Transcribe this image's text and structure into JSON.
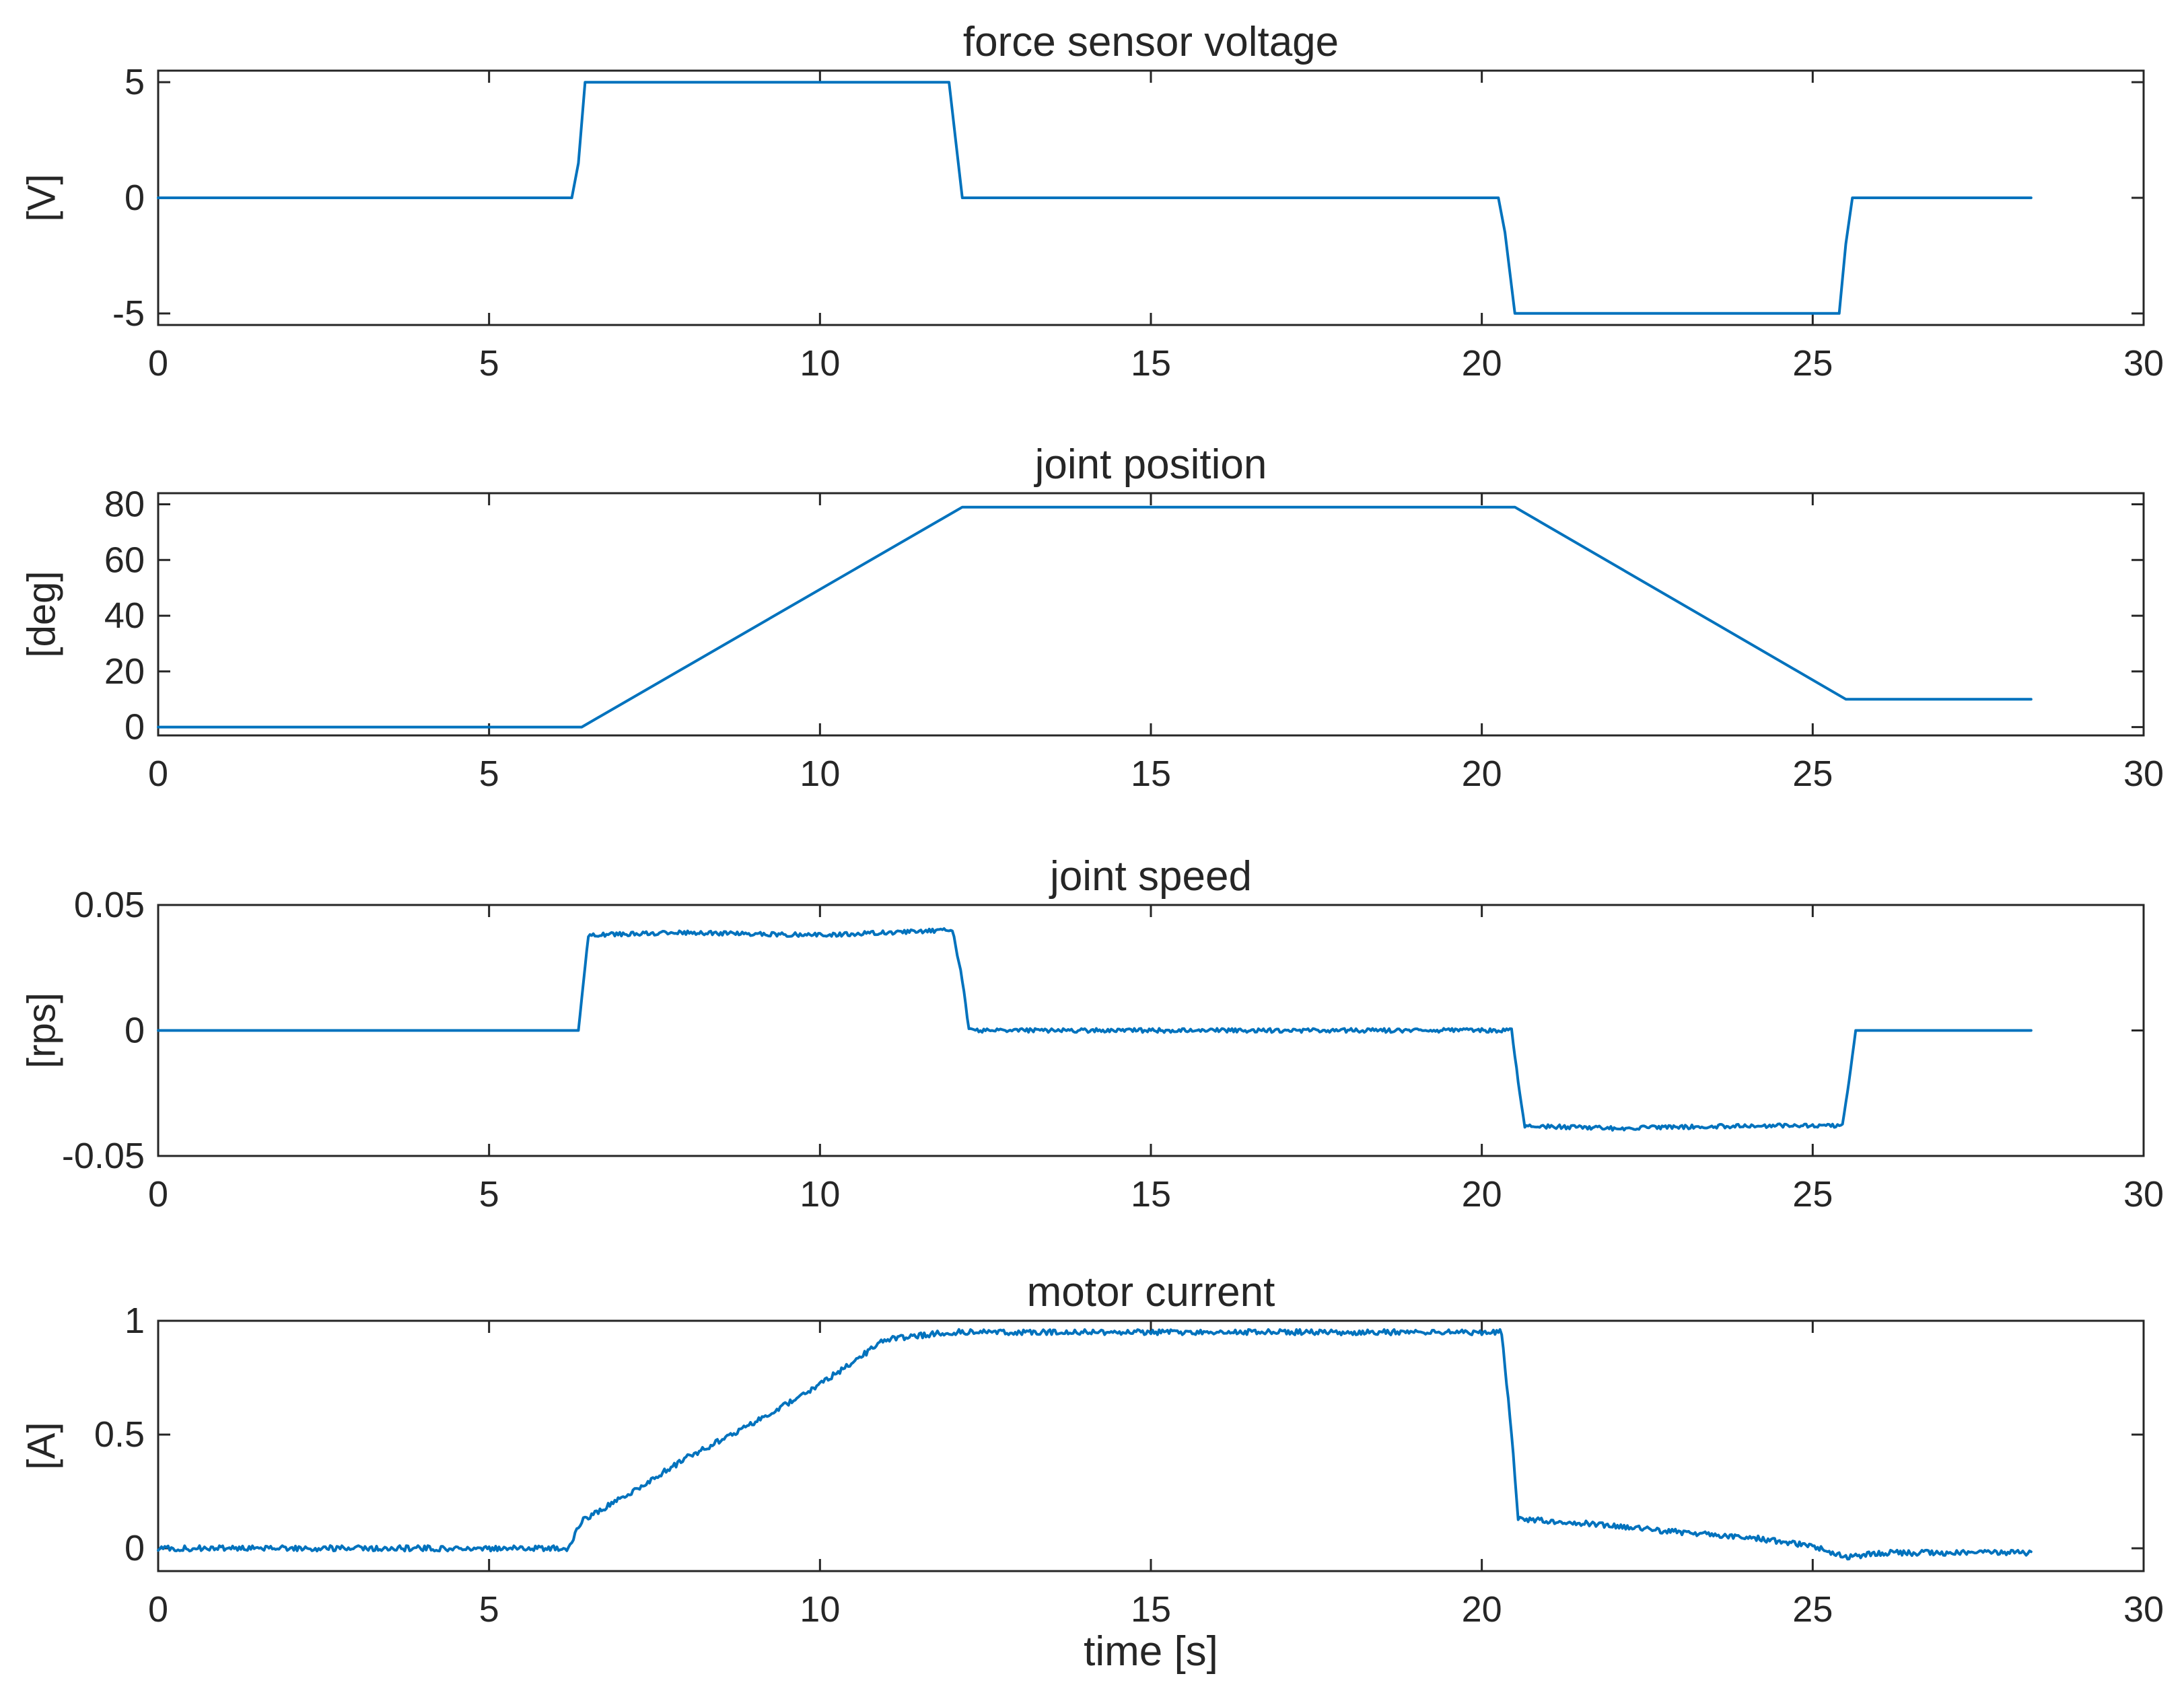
{
  "chart_data": [
    {
      "type": "line",
      "title": "force sensor voltage",
      "ylabel": "[V]",
      "xlabel": "",
      "xlim": [
        0,
        30
      ],
      "ylim": [
        -5.5,
        5.5
      ],
      "xticks": [
        0,
        5,
        10,
        15,
        20,
        25,
        30
      ],
      "yticks": [
        5,
        0,
        -5
      ],
      "ytick_labels": [
        "5",
        "0",
        "-5"
      ],
      "grid": false,
      "series": [
        {
          "color": "#0072bd",
          "noise": 0,
          "x": [
            0,
            6.25,
            6.35,
            6.45,
            11.95,
            12.05,
            12.15,
            20.25,
            20.35,
            20.5,
            25.4,
            25.5,
            25.6,
            28.3
          ],
          "y": [
            0,
            0,
            1.5,
            5,
            5,
            2.5,
            0,
            0,
            -1.5,
            -5,
            -5,
            -2,
            0,
            0
          ]
        }
      ]
    },
    {
      "type": "line",
      "title": "joint position",
      "ylabel": "[deg]",
      "xlabel": "",
      "xlim": [
        0,
        30
      ],
      "ylim": [
        -3,
        84
      ],
      "xticks": [
        0,
        5,
        10,
        15,
        20,
        25,
        30
      ],
      "yticks": [
        80,
        60,
        40,
        20,
        0
      ],
      "ytick_labels": [
        "80",
        "60",
        "40",
        "20",
        "0"
      ],
      "grid": false,
      "series": [
        {
          "color": "#0072bd",
          "noise": 0,
          "x": [
            0,
            6.4,
            12.15,
            20.5,
            25.5,
            28.3
          ],
          "y": [
            0,
            0,
            79,
            79,
            10,
            10
          ]
        }
      ]
    },
    {
      "type": "line",
      "title": "joint speed",
      "ylabel": "[rps]",
      "xlabel": "",
      "xlim": [
        0,
        30
      ],
      "ylim": [
        -0.05,
        0.05
      ],
      "xticks": [
        0,
        5,
        10,
        15,
        20,
        25,
        30
      ],
      "yticks": [
        0.05,
        0,
        -0.05
      ],
      "ytick_labels": [
        "0.05",
        "0",
        "-0.05"
      ],
      "grid": false,
      "series": [
        {
          "color": "#0072bd",
          "noise": 0.0008,
          "noise_from": 6.5,
          "noise_to": 25.5,
          "x": [
            0,
            6.35,
            6.5,
            8,
            10,
            11,
            12.0,
            12.15,
            12.25,
            20.45,
            20.55,
            20.65,
            22,
            24,
            25.45,
            25.55,
            25.65,
            28.3
          ],
          "y": [
            0,
            0,
            0.038,
            0.039,
            0.038,
            0.039,
            0.04,
            0.02,
            0,
            0,
            -0.02,
            -0.038,
            -0.039,
            -0.038,
            -0.038,
            -0.02,
            0,
            0
          ]
        }
      ]
    },
    {
      "type": "line",
      "title": "motor current",
      "ylabel": "[A]",
      "xlabel": "time [s]",
      "xlim": [
        0,
        30
      ],
      "ylim": [
        -0.1,
        1.0
      ],
      "xticks": [
        0,
        5,
        10,
        15,
        20,
        25,
        30
      ],
      "yticks": [
        1,
        0.5,
        0
      ],
      "ytick_labels": [
        "1",
        "0.5",
        "0"
      ],
      "grid": false,
      "series": [
        {
          "color": "#0072bd",
          "noise": 0.012,
          "noise_from": 0,
          "noise_to": 28.3,
          "x": [
            0,
            5,
            6.2,
            6.4,
            7,
            8,
            9,
            10,
            11,
            12,
            15,
            20.3,
            20.45,
            20.55,
            22,
            23,
            24,
            25,
            25.5,
            26,
            28.3
          ],
          "y": [
            0,
            0,
            0,
            0.12,
            0.22,
            0.4,
            0.55,
            0.72,
            0.92,
            0.95,
            0.95,
            0.95,
            0.5,
            0.13,
            0.1,
            0.07,
            0.05,
            0.01,
            -0.04,
            -0.02,
            -0.02
          ]
        }
      ]
    }
  ]
}
